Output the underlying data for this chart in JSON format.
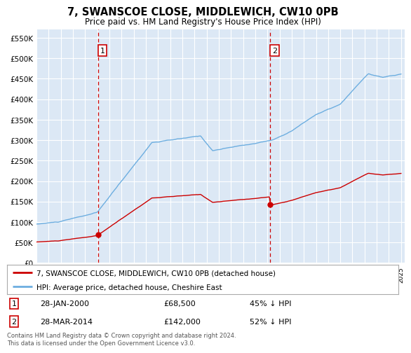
{
  "title": "7, SWANSCOE CLOSE, MIDDLEWICH, CW10 0PB",
  "subtitle": "Price paid vs. HM Land Registry's House Price Index (HPI)",
  "hpi_label": "HPI: Average price, detached house, Cheshire East",
  "property_label": "7, SWANSCOE CLOSE, MIDDLEWICH, CW10 0PB (detached house)",
  "sale1_date": "28-JAN-2000",
  "sale1_price": 68500,
  "sale1_pct": "45% ↓ HPI",
  "sale2_date": "28-MAR-2014",
  "sale2_price": 142000,
  "sale2_pct": "52% ↓ HPI",
  "hpi_color": "#6daee0",
  "property_color": "#cc0000",
  "vline_color": "#cc0000",
  "background_color": "#dce8f5",
  "ylim_min": 0,
  "ylim_max": 570000,
  "sale1_x": 2000.07,
  "sale2_x": 2014.24,
  "footer": "Contains HM Land Registry data © Crown copyright and database right 2024.\nThis data is licensed under the Open Government Licence v3.0."
}
